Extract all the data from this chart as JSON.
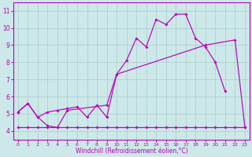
{
  "xlabel": "Windchill (Refroidissement éolien,°C)",
  "background_color": "#cce8e8",
  "line_color": "#bb00bb",
  "grid_color": "#aacccc",
  "xlim_min": -0.5,
  "xlim_max": 23.5,
  "ylim_min": 3.5,
  "ylim_max": 11.5,
  "yticks": [
    4,
    5,
    6,
    7,
    8,
    9,
    10,
    11
  ],
  "xticks": [
    0,
    1,
    2,
    3,
    4,
    5,
    6,
    7,
    8,
    9,
    10,
    11,
    12,
    13,
    14,
    15,
    16,
    17,
    18,
    19,
    20,
    21,
    22,
    23
  ],
  "s1_x": [
    0,
    1,
    2,
    3,
    4,
    5,
    6,
    7,
    8,
    9,
    10,
    11,
    12,
    13,
    14,
    15,
    16,
    17,
    18,
    19,
    20,
    21
  ],
  "s1_y": [
    5.1,
    5.6,
    4.8,
    5.1,
    5.2,
    5.3,
    5.4,
    4.8,
    5.5,
    4.8,
    7.3,
    8.1,
    9.4,
    8.9,
    10.5,
    10.2,
    10.8,
    10.8,
    9.4,
    8.9,
    8.0,
    6.3
  ],
  "s2_x": [
    0,
    1,
    2,
    3,
    4,
    5,
    9,
    10,
    19,
    22,
    23
  ],
  "s2_y": [
    5.1,
    5.6,
    4.8,
    4.3,
    4.2,
    5.2,
    5.5,
    7.3,
    9.0,
    9.3,
    4.2
  ],
  "s3_x": [
    0,
    1,
    2,
    3,
    4,
    5,
    6,
    7,
    8,
    9,
    10,
    11,
    12,
    13,
    14,
    15,
    16,
    17,
    18,
    19,
    20,
    21,
    22,
    23
  ],
  "s3_y": [
    4.2,
    4.2,
    4.2,
    4.2,
    4.2,
    4.2,
    4.2,
    4.2,
    4.2,
    4.2,
    4.2,
    4.2,
    4.2,
    4.2,
    4.2,
    4.2,
    4.2,
    4.2,
    4.2,
    4.2,
    4.2,
    4.2,
    4.2,
    4.2
  ]
}
